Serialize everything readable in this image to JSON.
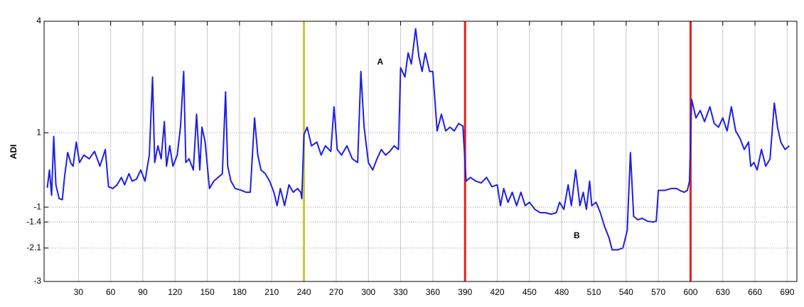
{
  "chart_data": {
    "type": "line",
    "y_label": "ADI",
    "x": [
      1,
      3,
      5,
      7,
      9,
      12,
      15,
      17,
      20,
      23,
      25,
      28,
      31,
      35,
      40,
      45,
      50,
      55,
      58,
      62,
      66,
      70,
      73,
      77,
      80,
      84,
      88,
      92,
      96,
      99,
      101,
      104,
      107,
      110,
      112,
      115,
      118,
      122,
      125,
      128,
      130,
      133,
      137,
      140,
      143,
      145,
      148,
      152,
      156,
      160,
      164,
      167,
      169,
      172,
      176,
      182,
      186,
      190,
      194,
      197,
      200,
      204,
      208,
      212,
      215,
      218,
      222,
      226,
      230,
      234,
      237,
      238,
      240,
      243,
      247,
      252,
      256,
      260,
      265,
      268,
      271,
      275,
      280,
      285,
      290,
      293,
      296,
      300,
      304,
      308,
      312,
      316,
      320,
      324,
      328,
      330,
      334,
      337,
      340,
      344,
      347,
      350,
      353,
      357,
      360,
      364,
      368,
      372,
      376,
      380,
      384,
      388,
      391,
      395,
      400,
      405,
      410,
      415,
      420,
      423,
      426,
      430,
      434,
      438,
      442,
      446,
      450,
      455,
      460,
      465,
      470,
      475,
      478,
      482,
      486,
      489,
      493,
      497,
      500,
      503,
      506,
      508,
      512,
      516,
      520,
      524,
      527,
      532,
      537,
      541,
      544,
      547,
      551,
      555,
      560,
      565,
      568,
      570,
      576,
      582,
      587,
      590,
      594,
      597,
      599,
      601,
      605,
      609,
      613,
      618,
      622,
      626,
      630,
      634,
      638,
      642,
      646,
      650,
      654,
      656,
      659,
      662,
      666,
      670,
      674,
      678,
      681,
      684,
      688,
      692
    ],
    "series": [
      {
        "name": "ADI",
        "color": "#1f1fe6",
        "values": [
          -0.48,
          0,
          -0.68,
          0.9,
          -0.4,
          -0.77,
          -0.8,
          -0.2,
          0.47,
          0.18,
          0.1,
          0.75,
          0.2,
          0.4,
          0.3,
          0.5,
          0.1,
          0.55,
          -0.45,
          -0.5,
          -0.4,
          -0.2,
          -0.4,
          -0.1,
          -0.3,
          -0.25,
          0,
          -0.3,
          0.4,
          2.5,
          0.2,
          0.65,
          0.3,
          1.3,
          0.1,
          0.65,
          0.1,
          0.4,
          1.15,
          2.65,
          0.2,
          0.3,
          0,
          1.5,
          0,
          1.15,
          0.75,
          -0.5,
          -0.3,
          -0.2,
          -0.1,
          2.1,
          0.1,
          -0.3,
          -0.5,
          -0.55,
          -0.6,
          -0.6,
          1.4,
          0.4,
          0,
          -0.1,
          -0.3,
          -0.6,
          -0.96,
          -0.5,
          -0.96,
          -0.4,
          -0.6,
          -0.5,
          -0.6,
          -0.77,
          0.95,
          1.15,
          0.65,
          0.75,
          0.4,
          0.65,
          0.5,
          1.7,
          0.55,
          0.4,
          0.65,
          0.3,
          0.2,
          2.65,
          1.15,
          0.2,
          0,
          0.3,
          0.55,
          0.4,
          0.5,
          0.65,
          0.55,
          2.75,
          2.5,
          3.15,
          2.85,
          3.8,
          3.05,
          2.65,
          3.15,
          2.65,
          2.65,
          1.05,
          1.5,
          1.05,
          1.15,
          1.05,
          1.25,
          1.18,
          -0.3,
          -0.2,
          -0.3,
          -0.35,
          -0.2,
          -0.45,
          -0.4,
          -0.96,
          -0.5,
          -0.87,
          -0.6,
          -0.96,
          -0.6,
          -0.96,
          -0.87,
          -1.06,
          -1.15,
          -1.15,
          -1.19,
          -1.15,
          -0.87,
          -1.06,
          -0.4,
          -0.96,
          0,
          -0.96,
          -0.6,
          -1.06,
          -0.3,
          -0.96,
          -0.87,
          -1.15,
          -1.53,
          -1.82,
          -2.15,
          -2.15,
          -2.1,
          -1.63,
          0.47,
          -1.25,
          -1.34,
          -1.3,
          -1.38,
          -1.4,
          -1.38,
          -0.55,
          -0.55,
          -0.5,
          -0.5,
          -0.55,
          -0.6,
          -0.55,
          -0.3,
          1.9,
          1.4,
          1.6,
          1.3,
          1.7,
          1.25,
          1.15,
          1.4,
          1.05,
          1.7,
          1.05,
          0.85,
          0.55,
          0.75,
          0.1,
          0.2,
          0,
          0.55,
          0.1,
          0.3,
          1.8,
          1.15,
          0.75,
          0.55,
          0.65
        ]
      }
    ],
    "xlim": [
      -2,
      699
    ],
    "ylim": [
      -3,
      4
    ],
    "xticks": [
      30,
      60,
      90,
      120,
      150,
      180,
      210,
      240,
      270,
      300,
      330,
      360,
      390,
      420,
      450,
      480,
      510,
      540,
      570,
      600,
      630,
      660,
      690
    ],
    "yticks": [
      4,
      1,
      -1,
      -1.4,
      -2.1,
      -3
    ],
    "grid": true,
    "vlines": [
      {
        "x": 240,
        "color": "#c8c832"
      },
      {
        "x": 390,
        "color": "#e61e1e"
      },
      {
        "x": 600,
        "color": "#e61e1e"
      }
    ],
    "annotations": [
      {
        "text": "A",
        "x": 311,
        "y": 2.9
      },
      {
        "text": "B",
        "x": 494,
        "y": -1.78
      }
    ]
  }
}
